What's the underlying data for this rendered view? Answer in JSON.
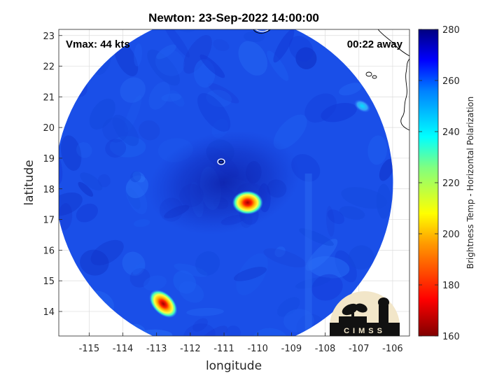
{
  "chart_data": {
    "type": "heatmap",
    "title": "Newton: 23-Sep-2022 14:00:00",
    "xlabel": "longitude",
    "ylabel": "latitude",
    "xlim": [
      -115.9,
      -105.5
    ],
    "ylim": [
      13.2,
      23.2
    ],
    "xticks": [
      -115,
      -114,
      -113,
      -112,
      -111,
      -110,
      -109,
      -108,
      -107,
      -106
    ],
    "yticks": [
      14,
      15,
      16,
      17,
      18,
      19,
      20,
      21,
      22,
      23
    ],
    "grid": true,
    "annotations": {
      "vmax": "Vmax: 44 kts",
      "away": "00:22 away"
    },
    "colorbar": {
      "label": "Brightness Temp - Horizontal Polarization",
      "range": [
        160,
        280
      ],
      "ticks": [
        160,
        180,
        200,
        220,
        240,
        260,
        280
      ],
      "colormap": "jet"
    },
    "swath": {
      "background_value": 256,
      "center": [
        -111.0,
        18.2
      ],
      "radius_deg": 5.6
    },
    "features": [
      {
        "lon": -111.0,
        "lat": 18.2,
        "value": 265,
        "kind": "cold center of circulation"
      },
      {
        "lon": -110.3,
        "lat": 17.55,
        "value": 170,
        "kind": "convective core"
      },
      {
        "lon": -112.8,
        "lat": 14.25,
        "value": 178,
        "kind": "convective band"
      },
      {
        "lon": -106.9,
        "lat": 20.7,
        "value": 238,
        "kind": "land / islands"
      }
    ]
  },
  "logo": {
    "text": "CIMSS"
  }
}
